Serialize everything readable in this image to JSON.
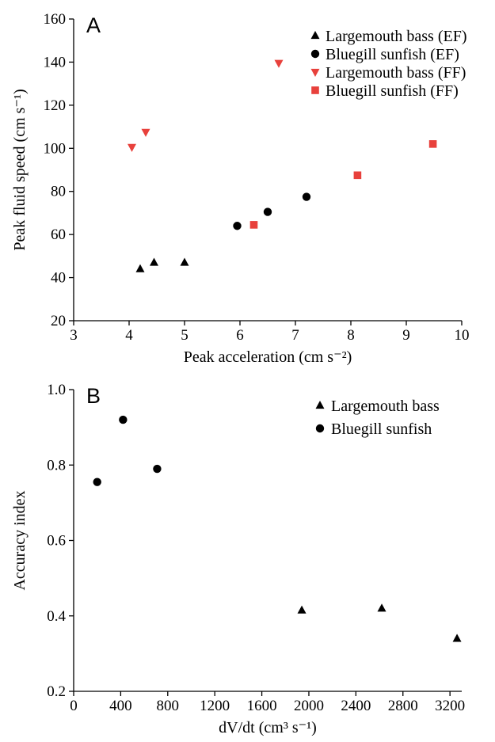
{
  "chart_data": [
    {
      "type": "scatter",
      "panel_label": "A",
      "xlabel": "Peak acceleration (cm s⁻²)",
      "ylabel": "Peak fluid speed (cm s⁻¹)",
      "xlim": [
        3,
        10
      ],
      "ylim": [
        20,
        160
      ],
      "xticks": [
        3,
        4,
        5,
        6,
        7,
        8,
        9,
        10
      ],
      "yticks": [
        20,
        40,
        60,
        80,
        100,
        120,
        140,
        160
      ],
      "legend_position": "top-right",
      "series": [
        {
          "name": "Largemouth bass (EF)",
          "marker": "triangle-up",
          "color": "#000000",
          "points": [
            [
              4.2,
              44
            ],
            [
              4.45,
              47
            ],
            [
              5.0,
              47
            ]
          ]
        },
        {
          "name": "Bluegill sunfish (EF)",
          "marker": "circle",
          "color": "#000000",
          "points": [
            [
              5.95,
              64
            ],
            [
              6.5,
              70.5
            ],
            [
              7.2,
              77.5
            ]
          ]
        },
        {
          "name": "Largemouth bass (FF)",
          "marker": "triangle-down",
          "color": "#e8413c",
          "points": [
            [
              4.05,
              100.5
            ],
            [
              4.3,
              107.5
            ],
            [
              6.7,
              139.5
            ]
          ]
        },
        {
          "name": "Bluegill sunfish (FF)",
          "marker": "square",
          "color": "#e8413c",
          "points": [
            [
              6.25,
              64.5
            ],
            [
              8.12,
              87.5
            ],
            [
              9.48,
              102
            ]
          ]
        }
      ]
    },
    {
      "type": "scatter",
      "panel_label": "B",
      "xlabel": "dV/dt (cm³ s⁻¹)",
      "ylabel": "Accuracy index",
      "xlim": [
        0,
        3300
      ],
      "ylim": [
        0.2,
        1.0
      ],
      "xticks": [
        0,
        400,
        800,
        1200,
        1600,
        2000,
        2400,
        2800,
        3200
      ],
      "yticks": [
        0.2,
        0.4,
        0.6,
        0.8,
        1.0
      ],
      "legend_position": "top-right",
      "series": [
        {
          "name": "Largemouth bass",
          "marker": "triangle-up",
          "color": "#000000",
          "points": [
            [
              1940,
              0.415
            ],
            [
              2620,
              0.42
            ],
            [
              3260,
              0.34
            ]
          ]
        },
        {
          "name": "Bluegill sunfish",
          "marker": "circle",
          "color": "#000000",
          "points": [
            [
              200,
              0.755
            ],
            [
              420,
              0.92
            ],
            [
              710,
              0.79
            ]
          ]
        }
      ]
    }
  ]
}
